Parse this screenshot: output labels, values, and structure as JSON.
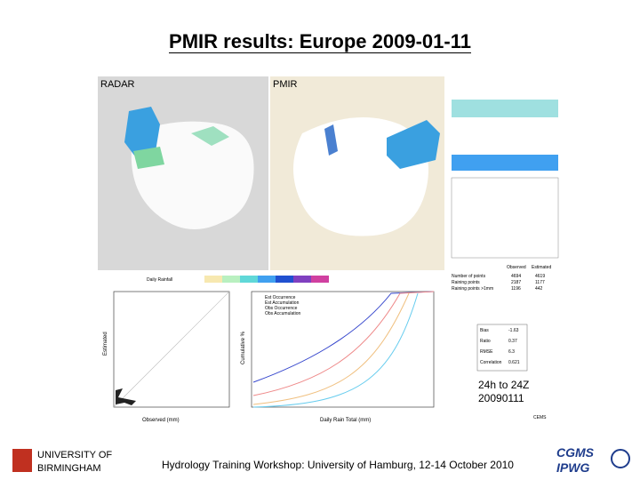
{
  "title": "PMIR results: Europe 2009-01-11",
  "footer": "Hydrology Training Workshop: University of Hamburg, 12-14 October 2010",
  "logos": {
    "left": [
      "UNIVERSITY OF",
      "BIRMINGHAM"
    ],
    "right": [
      "CGMS",
      "IPWG"
    ]
  },
  "maps": [
    {
      "label": "RADAR"
    },
    {
      "label": "PMIR"
    }
  ],
  "colorbar": {
    "label": "Daily Rainfall"
  },
  "scatter": {
    "x_label": "Observed (mm)",
    "y_label": "Estimated"
  },
  "cdf": {
    "x_label": "Daily Rain Total (mm)",
    "y_label": "Cumulative %",
    "legend": [
      "Est Occurrence",
      "Est Accumulation",
      "Obs Occurrence",
      "Obs Accumulation"
    ]
  },
  "stats": {
    "header": [
      "Observed",
      "Estimated"
    ],
    "rows": [
      [
        "Number of points",
        "4694",
        "4619"
      ],
      [
        "Raining points",
        "2187",
        "1177"
      ],
      [
        "Raining points >1mm",
        "1196",
        "442"
      ]
    ]
  },
  "scores": [
    [
      "Bias",
      "-1.63"
    ],
    [
      "Ratio",
      "0.37"
    ],
    [
      "RMSE",
      "6.3"
    ],
    [
      "Correlation",
      "0.621"
    ]
  ],
  "date": [
    "24h to 24Z",
    "20090111"
  ],
  "credit": "CEMS"
}
